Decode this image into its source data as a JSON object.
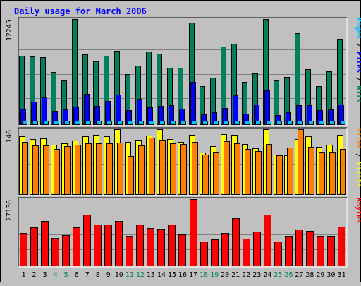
{
  "title": "Daily usage for March 2006",
  "colors": {
    "background": "#c0c0c0",
    "plot_background": "#c0c0c0",
    "title": "#0000ff",
    "hits": "#00805c",
    "files": "#0000ff",
    "pages": "#00c0ff",
    "visits": "#ffff00",
    "sites": "#ff8000",
    "kbytes": "#ff0000",
    "gridline": "#808080",
    "weekend_label": "#00805c",
    "weekday_label": "#000000"
  },
  "chart_data": [
    {
      "type": "bar",
      "title": "Daily usage for March 2006",
      "categories": [
        "1",
        "2",
        "3",
        "4",
        "5",
        "6",
        "7",
        "8",
        "9",
        "10",
        "11",
        "12",
        "13",
        "14",
        "15",
        "16",
        "17",
        "18",
        "19",
        "20",
        "21",
        "22",
        "23",
        "24",
        "25",
        "26",
        "27",
        "28",
        "29",
        "30",
        "31"
      ],
      "weekend_days": [
        "4",
        "5",
        "11",
        "12",
        "18",
        "19",
        "25",
        "26"
      ],
      "ymax_label": "12245",
      "ylim": [
        0,
        12245
      ],
      "legend": [
        "Pages",
        "Files",
        "Hits"
      ],
      "series": [
        {
          "name": "Hits",
          "values": [
            7950,
            7920,
            7800,
            6080,
            5170,
            12245,
            8170,
            7350,
            7970,
            8510,
            5850,
            6840,
            8500,
            8250,
            6580,
            6580,
            11810,
            4420,
            5420,
            9040,
            9330,
            4950,
            5920,
            12245,
            5170,
            5500,
            10620,
            6420,
            4400,
            6160,
            9950
          ]
        },
        {
          "name": "Files",
          "values": [
            1770,
            2590,
            3120,
            1600,
            1700,
            2060,
            3540,
            2140,
            2700,
            3470,
            1660,
            2940,
            1990,
            2160,
            2220,
            1830,
            4900,
            1110,
            1360,
            1930,
            3350,
            1240,
            2310,
            3920,
            1040,
            1420,
            2250,
            2180,
            1670,
            1750,
            2320
          ]
        },
        {
          "name": "Pages",
          "values": [
            400,
            400,
            400,
            400,
            400,
            400,
            400,
            400,
            400,
            400,
            400,
            400,
            400,
            400,
            400,
            400,
            400,
            400,
            400,
            400,
            400,
            400,
            400,
            400,
            400,
            400,
            400,
            400,
            400,
            400,
            400
          ]
        }
      ]
    },
    {
      "type": "bar",
      "ymax_label": "146",
      "ylim": [
        0,
        146
      ],
      "legend": [
        "Sites",
        "Visits"
      ],
      "series": [
        {
          "name": "Visits",
          "values": [
            130,
            123,
            126,
            111,
            115,
            120,
            130,
            133,
            130,
            146,
            117,
            122,
            131,
            146,
            124,
            117,
            134,
            94,
            108,
            135,
            134,
            112,
            103,
            146,
            89,
            88,
            123,
            130,
            106,
            111,
            134
          ]
        },
        {
          "name": "Sites",
          "values": [
            118,
            110,
            110,
            101,
            108,
            111,
            115,
            115,
            115,
            116,
            86,
            110,
            127,
            122,
            114,
            113,
            117,
            89,
            96,
            119,
            114,
            102,
            97,
            113,
            87,
            104,
            146,
            107,
            96,
            96,
            101
          ]
        }
      ]
    },
    {
      "type": "bar",
      "ymax_label": "27136",
      "ylim": [
        0,
        27136
      ],
      "legend": [
        "KBytes"
      ],
      "series": [
        {
          "name": "KBytes",
          "values": [
            13400,
            15500,
            18300,
            11200,
            12500,
            15600,
            20800,
            16800,
            16800,
            18200,
            12000,
            16800,
            15300,
            15100,
            16700,
            12800,
            27136,
            9800,
            10600,
            13400,
            19300,
            11000,
            14000,
            20900,
            9700,
            12000,
            14600,
            14200,
            12000,
            12000,
            15900
          ]
        }
      ]
    }
  ]
}
